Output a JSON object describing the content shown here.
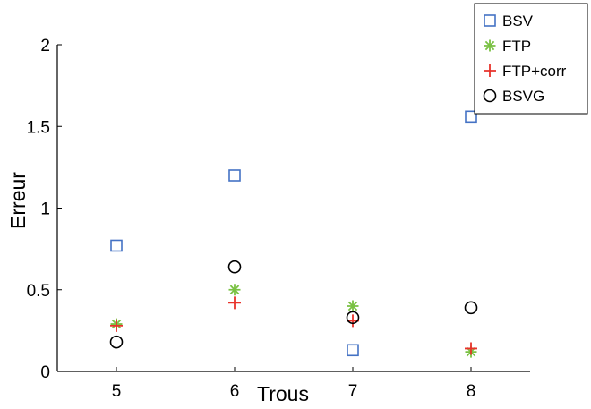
{
  "chart_data": {
    "type": "scatter",
    "xlabel": "Trous",
    "ylabel": "Erreur",
    "xlim": [
      4.5,
      8.5
    ],
    "ylim": [
      0,
      2
    ],
    "x_ticks": [
      "5",
      "6",
      "7",
      "8"
    ],
    "y_ticks": [
      "0",
      "0.5",
      "1",
      "1.5",
      "2"
    ],
    "grid": false,
    "legend_position": "top-right",
    "series": [
      {
        "name": "BSV",
        "marker": "square",
        "color": "#4472c4",
        "points": [
          [
            5,
            0.77
          ],
          [
            6,
            1.2
          ],
          [
            7,
            0.13
          ],
          [
            8,
            1.56
          ]
        ]
      },
      {
        "name": "FTP",
        "marker": "asterisk",
        "color": "#7ac143",
        "points": [
          [
            5,
            0.29
          ],
          [
            6,
            0.5
          ],
          [
            7,
            0.4
          ],
          [
            8,
            0.12
          ]
        ]
      },
      {
        "name": "FTP+corr",
        "marker": "plus",
        "color": "#e8332b",
        "points": [
          [
            5,
            0.28
          ],
          [
            6,
            0.42
          ],
          [
            7,
            0.31
          ],
          [
            8,
            0.14
          ]
        ]
      },
      {
        "name": "BSVG",
        "marker": "circle",
        "color": "#000000",
        "points": [
          [
            5,
            0.18
          ],
          [
            6,
            0.64
          ],
          [
            7,
            0.33
          ],
          [
            8,
            0.39
          ]
        ]
      }
    ]
  }
}
